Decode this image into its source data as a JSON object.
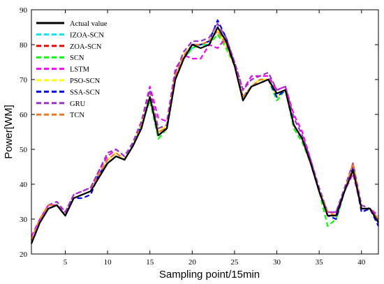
{
  "chart_data": {
    "type": "line",
    "title": "",
    "xlabel": "Sampling point/15min",
    "ylabel": "Power[WM]",
    "xlim": [
      1,
      42
    ],
    "ylim": [
      20,
      90
    ],
    "xticks": [
      5,
      10,
      15,
      20,
      25,
      30,
      35,
      40
    ],
    "yticks": [
      20,
      30,
      40,
      50,
      60,
      70,
      80,
      90
    ],
    "grid": false,
    "legend_position": "top-left",
    "x": [
      1,
      2,
      3,
      4,
      5,
      6,
      7,
      8,
      9,
      10,
      11,
      12,
      13,
      14,
      15,
      16,
      17,
      18,
      19,
      20,
      21,
      22,
      23,
      24,
      25,
      26,
      27,
      28,
      29,
      30,
      31,
      32,
      33,
      34,
      35,
      36,
      37,
      38,
      39,
      40,
      41,
      42
    ],
    "series": [
      {
        "name": "Actual value",
        "color": "#000000",
        "dash": "solid",
        "values": [
          23,
          29,
          33,
          34,
          31,
          36,
          37,
          38,
          42,
          46,
          48,
          47,
          51,
          56,
          65,
          54,
          56,
          70,
          76,
          80,
          79,
          80,
          85,
          81,
          74,
          64,
          68,
          69,
          70,
          66,
          67,
          57,
          53,
          46,
          38,
          31,
          31,
          38,
          44,
          33,
          33,
          29
        ]
      },
      {
        "name": "IZOA-SCN",
        "color": "#00e5ee",
        "dash": "dash",
        "values": [
          23,
          29,
          33,
          34,
          31,
          36,
          37,
          38,
          43,
          46,
          48,
          47,
          51,
          57,
          65,
          54,
          56,
          71,
          76,
          79,
          80,
          80,
          85,
          80,
          74,
          65,
          68,
          70,
          70,
          65,
          67,
          57,
          53,
          46,
          38,
          31,
          31,
          38,
          44,
          33,
          33,
          29
        ]
      },
      {
        "name": "ZOA-SCN",
        "color": "#ff0000",
        "dash": "dash",
        "values": [
          24,
          30,
          33,
          34,
          31,
          36,
          37,
          38,
          43,
          47,
          49,
          47,
          51,
          57,
          65,
          55,
          56,
          71,
          77,
          80,
          80,
          81,
          84,
          80,
          74,
          65,
          68,
          70,
          70,
          66,
          67,
          57,
          53,
          46,
          38,
          31,
          31,
          38,
          45,
          33,
          33,
          29
        ]
      },
      {
        "name": "SCN",
        "color": "#00ff00",
        "dash": "dash",
        "values": [
          24,
          30,
          33,
          34,
          31,
          36,
          37,
          38,
          43,
          46,
          48,
          47,
          51,
          57,
          64,
          53,
          56,
          70,
          76,
          79,
          80,
          80,
          83,
          79,
          74,
          65,
          68,
          70,
          70,
          64,
          67,
          56,
          52,
          46,
          38,
          28,
          30,
          38,
          44,
          33,
          33,
          29
        ]
      },
      {
        "name": "LSTM",
        "color": "#ff00ff",
        "dash": "dash",
        "values": [
          25,
          30,
          34,
          34,
          32,
          37,
          38,
          39,
          44,
          48,
          50,
          48,
          52,
          58,
          68,
          59,
          58,
          73,
          77,
          76,
          76,
          80,
          79,
          82,
          75,
          67,
          71,
          71,
          71,
          67,
          68,
          60,
          55,
          47,
          38,
          32,
          32,
          38,
          43,
          33,
          33,
          31
        ]
      },
      {
        "name": "PSO-SCN",
        "color": "#ffff00",
        "dash": "dash",
        "values": [
          24,
          30,
          33,
          34,
          31,
          36,
          37,
          38,
          43,
          47,
          49,
          47,
          51,
          57,
          66,
          55,
          57,
          71,
          77,
          80,
          80,
          81,
          84,
          80,
          74,
          65,
          68,
          70,
          70,
          65,
          67,
          57,
          53,
          46,
          38,
          31,
          31,
          38,
          44,
          33,
          33,
          29
        ]
      },
      {
        "name": "SSA-SCN",
        "color": "#0000ff",
        "dash": "dash",
        "values": [
          23,
          29,
          33,
          34,
          31,
          36,
          36,
          37,
          43,
          46,
          48,
          47,
          51,
          57,
          65,
          54,
          56,
          70,
          76,
          80,
          80,
          81,
          87,
          82,
          74,
          65,
          68,
          69,
          70,
          65,
          67,
          57,
          53,
          46,
          38,
          31,
          30,
          38,
          45,
          32,
          33,
          28
        ]
      },
      {
        "name": "GRU",
        "color": "#9933cc",
        "dash": "dash",
        "values": [
          24,
          30,
          34,
          35,
          32,
          37,
          38,
          39,
          44,
          49,
          50,
          48,
          52,
          58,
          67,
          56,
          57,
          72,
          78,
          81,
          81,
          82,
          86,
          82,
          75,
          67,
          70,
          71,
          72,
          67,
          68,
          59,
          54,
          47,
          39,
          32,
          32,
          39,
          46,
          34,
          33,
          30
        ]
      },
      {
        "name": "TCN",
        "color": "#f07820",
        "dash": "dash",
        "values": [
          24,
          30,
          34,
          34,
          31,
          36,
          37,
          38,
          43,
          47,
          49,
          47,
          51,
          57,
          65,
          55,
          56,
          71,
          77,
          80,
          80,
          81,
          84,
          80,
          74,
          65,
          68,
          70,
          70,
          66,
          67,
          57,
          53,
          46,
          38,
          32,
          31,
          38,
          46,
          33,
          33,
          30
        ]
      }
    ]
  }
}
